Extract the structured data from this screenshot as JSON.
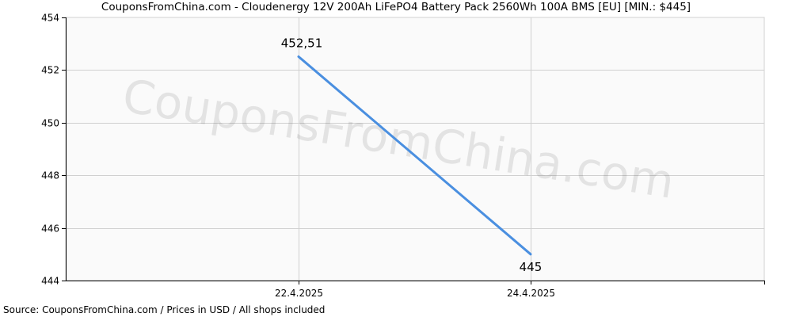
{
  "chart_data": {
    "type": "line",
    "title": "CouponsFromChina.com - Cloudenergy 12V 200Ah LiFePO4 Battery Pack 2560Wh 100A BMS [EU] [MIN.: $445]",
    "categories": [
      "22.4.2025",
      "24.4.2025"
    ],
    "series": [
      {
        "values": [
          452.51,
          445
        ]
      }
    ],
    "data_labels": [
      "452,51",
      "445"
    ],
    "y_ticks": [
      "444",
      "446",
      "448",
      "450",
      "452",
      "454"
    ],
    "ylim": [
      444,
      454
    ],
    "xlabel": "",
    "ylabel": "",
    "grid": true,
    "line_color": "#4a8fe0",
    "watermark": "CouponsFromChina.com",
    "footer": "Source: CouponsFromChina.com / Prices in USD / All shops included"
  }
}
